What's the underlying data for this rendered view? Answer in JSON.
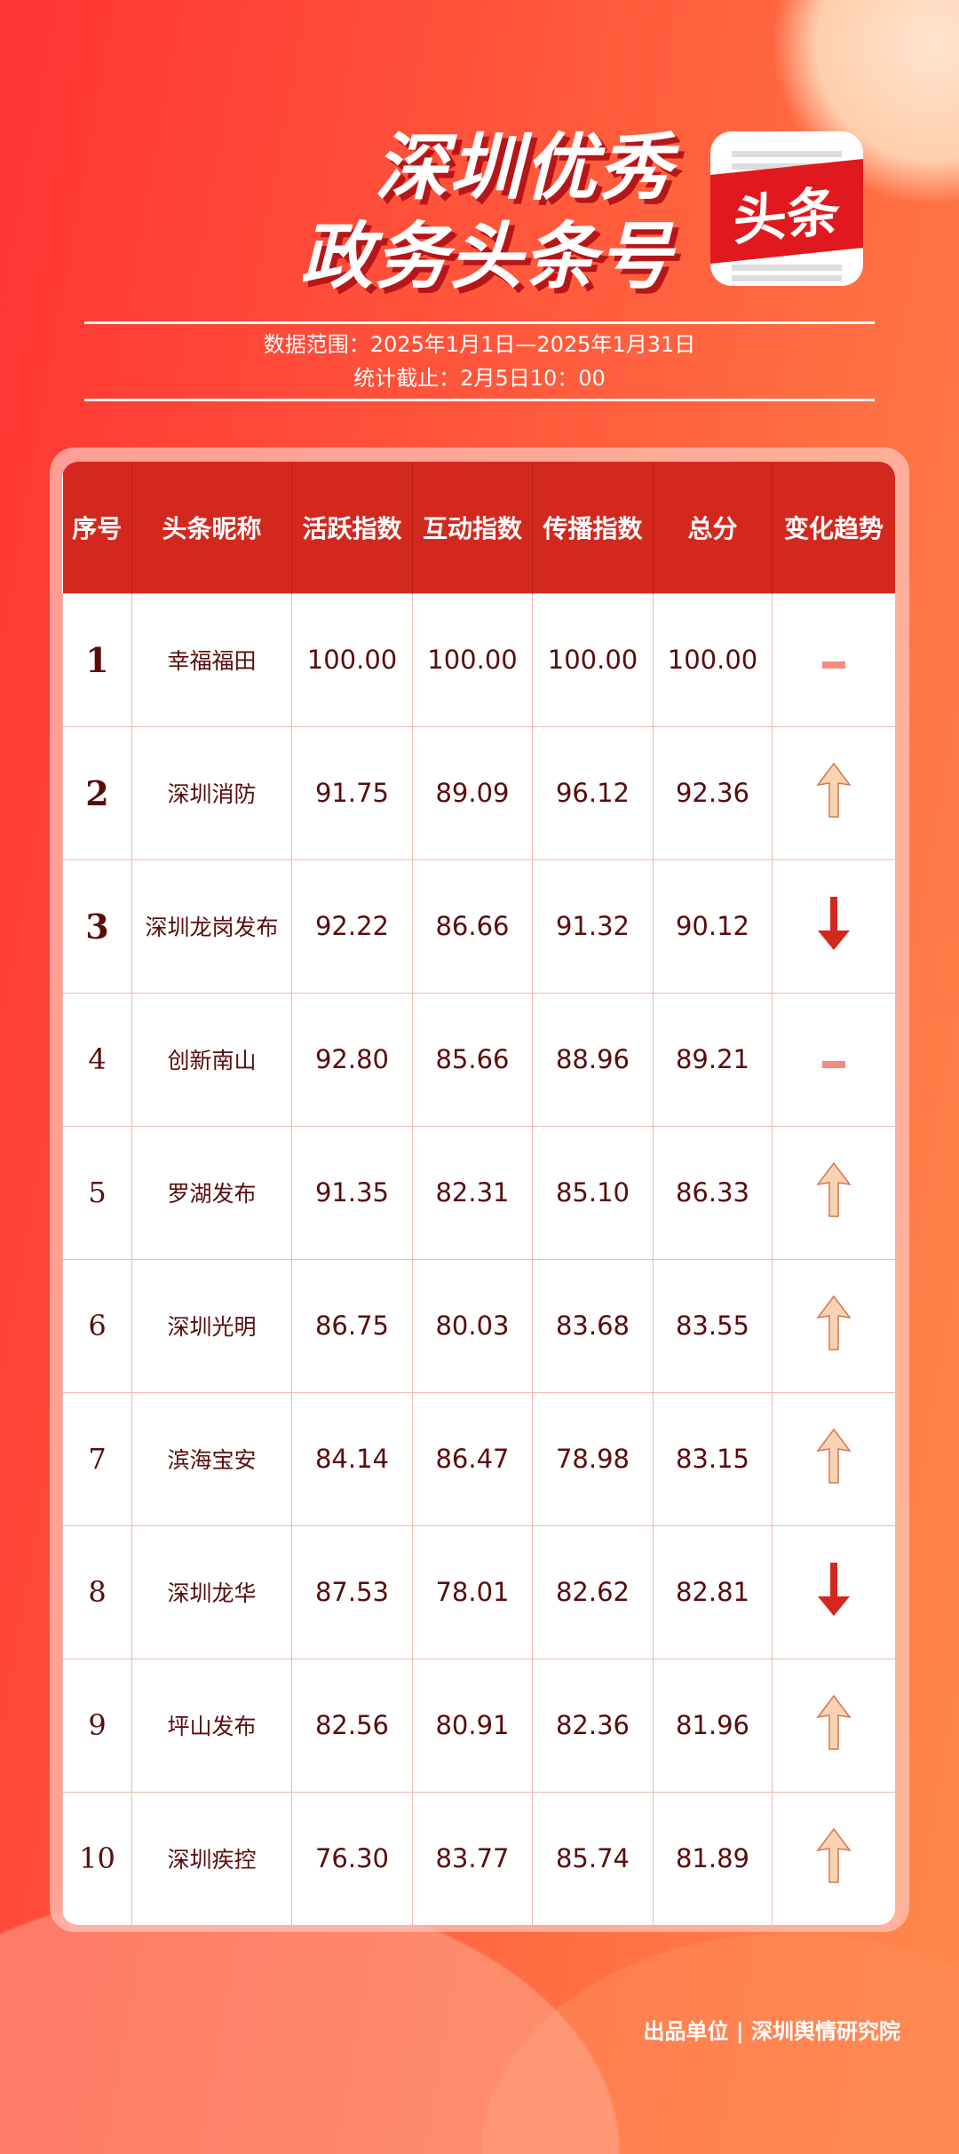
{
  "header": {
    "title_line1": "深圳优秀",
    "title_line2": "政务头条号",
    "logo_text": "头条",
    "data_range": "数据范围：2025年1月1日—2025年1月31日",
    "cutoff": "统计截止：2月5日10：00"
  },
  "table": {
    "columns": [
      "序号",
      "头条昵称",
      "活跃指数",
      "互动指数",
      "传播指数",
      "总分",
      "变化趋势"
    ],
    "rows": [
      {
        "rank": "1",
        "name": "幸福福田",
        "active": "100.00",
        "interact": "100.00",
        "spread": "100.00",
        "total": "100.00",
        "trend": "flat"
      },
      {
        "rank": "2",
        "name": "深圳消防",
        "active": "91.75",
        "interact": "89.09",
        "spread": "96.12",
        "total": "92.36",
        "trend": "up"
      },
      {
        "rank": "3",
        "name": "深圳龙岗发布",
        "active": "92.22",
        "interact": "86.66",
        "spread": "91.32",
        "total": "90.12",
        "trend": "down"
      },
      {
        "rank": "4",
        "name": "创新南山",
        "active": "92.80",
        "interact": "85.66",
        "spread": "88.96",
        "total": "89.21",
        "trend": "flat"
      },
      {
        "rank": "5",
        "name": "罗湖发布",
        "active": "91.35",
        "interact": "82.31",
        "spread": "85.10",
        "total": "86.33",
        "trend": "up"
      },
      {
        "rank": "6",
        "name": "深圳光明",
        "active": "86.75",
        "interact": "80.03",
        "spread": "83.68",
        "total": "83.55",
        "trend": "up"
      },
      {
        "rank": "7",
        "name": "滨海宝安",
        "active": "84.14",
        "interact": "86.47",
        "spread": "78.98",
        "total": "83.15",
        "trend": "up"
      },
      {
        "rank": "8",
        "name": "深圳龙华",
        "active": "87.53",
        "interact": "78.01",
        "spread": "82.62",
        "total": "82.81",
        "trend": "down"
      },
      {
        "rank": "9",
        "name": "坪山发布",
        "active": "82.56",
        "interact": "80.91",
        "spread": "82.36",
        "total": "81.96",
        "trend": "up"
      },
      {
        "rank": "10",
        "name": "深圳疾控",
        "active": "76.30",
        "interact": "83.77",
        "spread": "85.74",
        "total": "81.89",
        "trend": "up"
      }
    ]
  },
  "colors": {
    "header": "#d3281e",
    "up": "#f9d3b4",
    "down": "#d3281e",
    "flat": "#f58a80"
  },
  "footer": "出品单位 | 深圳舆情研究院"
}
